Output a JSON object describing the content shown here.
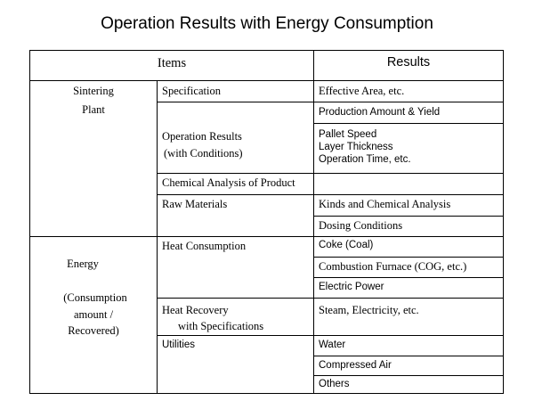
{
  "title": "Operation Results with Energy Consumption",
  "header": {
    "items": "Items",
    "results": "Results"
  },
  "sintering": {
    "group_line1": "Sintering",
    "group_line2": "Plant",
    "specification": "Specification",
    "operation_line1": "Operation Results",
    "operation_line2": "(with Conditions)",
    "chemical": "Chemical Analysis of Product",
    "raw": "Raw Materials",
    "r_effective_area": "Effective Area, etc.",
    "r_production": "Production Amount & Yield",
    "r_pallet": "Pallet Speed",
    "r_layer": "Layer Thickness",
    "r_operation_time": "Operation Time, etc.",
    "r_kinds": "Kinds and Chemical Analysis",
    "r_dosing": "Dosing Conditions"
  },
  "energy": {
    "group_line1": "Energy",
    "group_line2": "(Consumption",
    "group_line3": "amount /",
    "group_line4": "Recovered)",
    "heat_consumption": "Heat Consumption",
    "heat_recovery_line1": "Heat Recovery",
    "heat_recovery_line2": "with Specifications",
    "utilities": "Utilities",
    "r_coke": "Coke (Coal)",
    "r_furnace": "Combustion Furnace (COG, etc.)",
    "r_electric": "Electric Power",
    "r_steam": "Steam, Electricity, etc.",
    "r_water": "Water",
    "r_compressed_air": "Compressed Air",
    "r_others": "Others"
  }
}
